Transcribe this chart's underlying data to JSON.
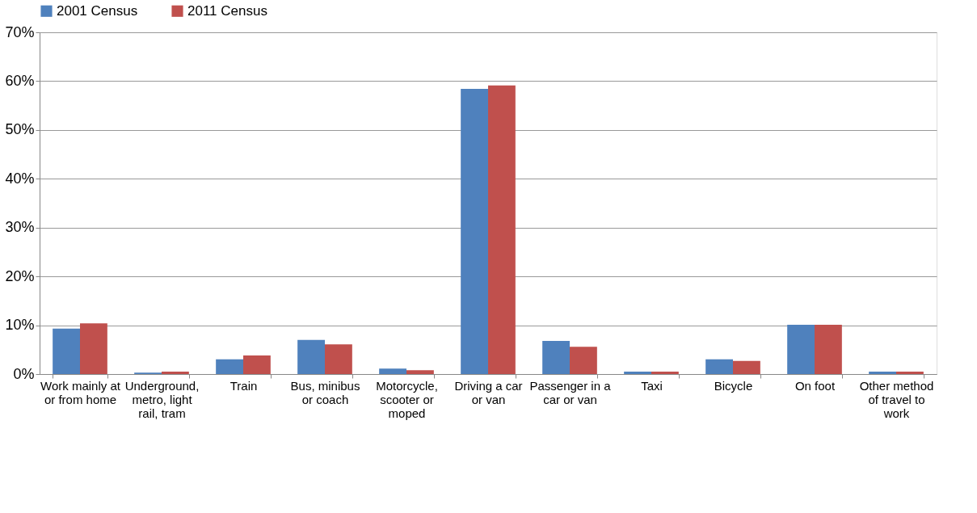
{
  "chart_data": {
    "type": "bar",
    "categories": [
      "Work mainly at or from home",
      "Underground, metro, light rail, tram",
      "Train",
      "Bus, minibus or coach",
      "Motorcycle, scooter or moped",
      "Driving a car or van",
      "Passenger in a car or van",
      "Taxi",
      "Bicycle",
      "On foot",
      "Other method of travel to work"
    ],
    "series": [
      {
        "name": "2001 Census",
        "color": "#4f81bd",
        "values": [
          9.3,
          0.3,
          3.0,
          7.0,
          1.1,
          58.4,
          6.8,
          0.5,
          3.0,
          10.1,
          0.5
        ]
      },
      {
        "name": "2011 Census",
        "color": "#c0504d",
        "values": [
          10.4,
          0.5,
          3.8,
          6.1,
          0.8,
          59.1,
          5.6,
          0.5,
          2.7,
          10.1,
          0.5
        ]
      }
    ],
    "ylim": [
      0,
      70
    ],
    "yticks": [
      {
        "value": 0,
        "label": "0%"
      },
      {
        "value": 10,
        "label": "10%"
      },
      {
        "value": 20,
        "label": "20%"
      },
      {
        "value": 30,
        "label": "30%"
      },
      {
        "value": 40,
        "label": "40%"
      },
      {
        "value": 50,
        "label": "50%"
      },
      {
        "value": 60,
        "label": "60%"
      },
      {
        "value": 70,
        "label": "70%"
      }
    ],
    "grid": "y",
    "legend": "top"
  }
}
